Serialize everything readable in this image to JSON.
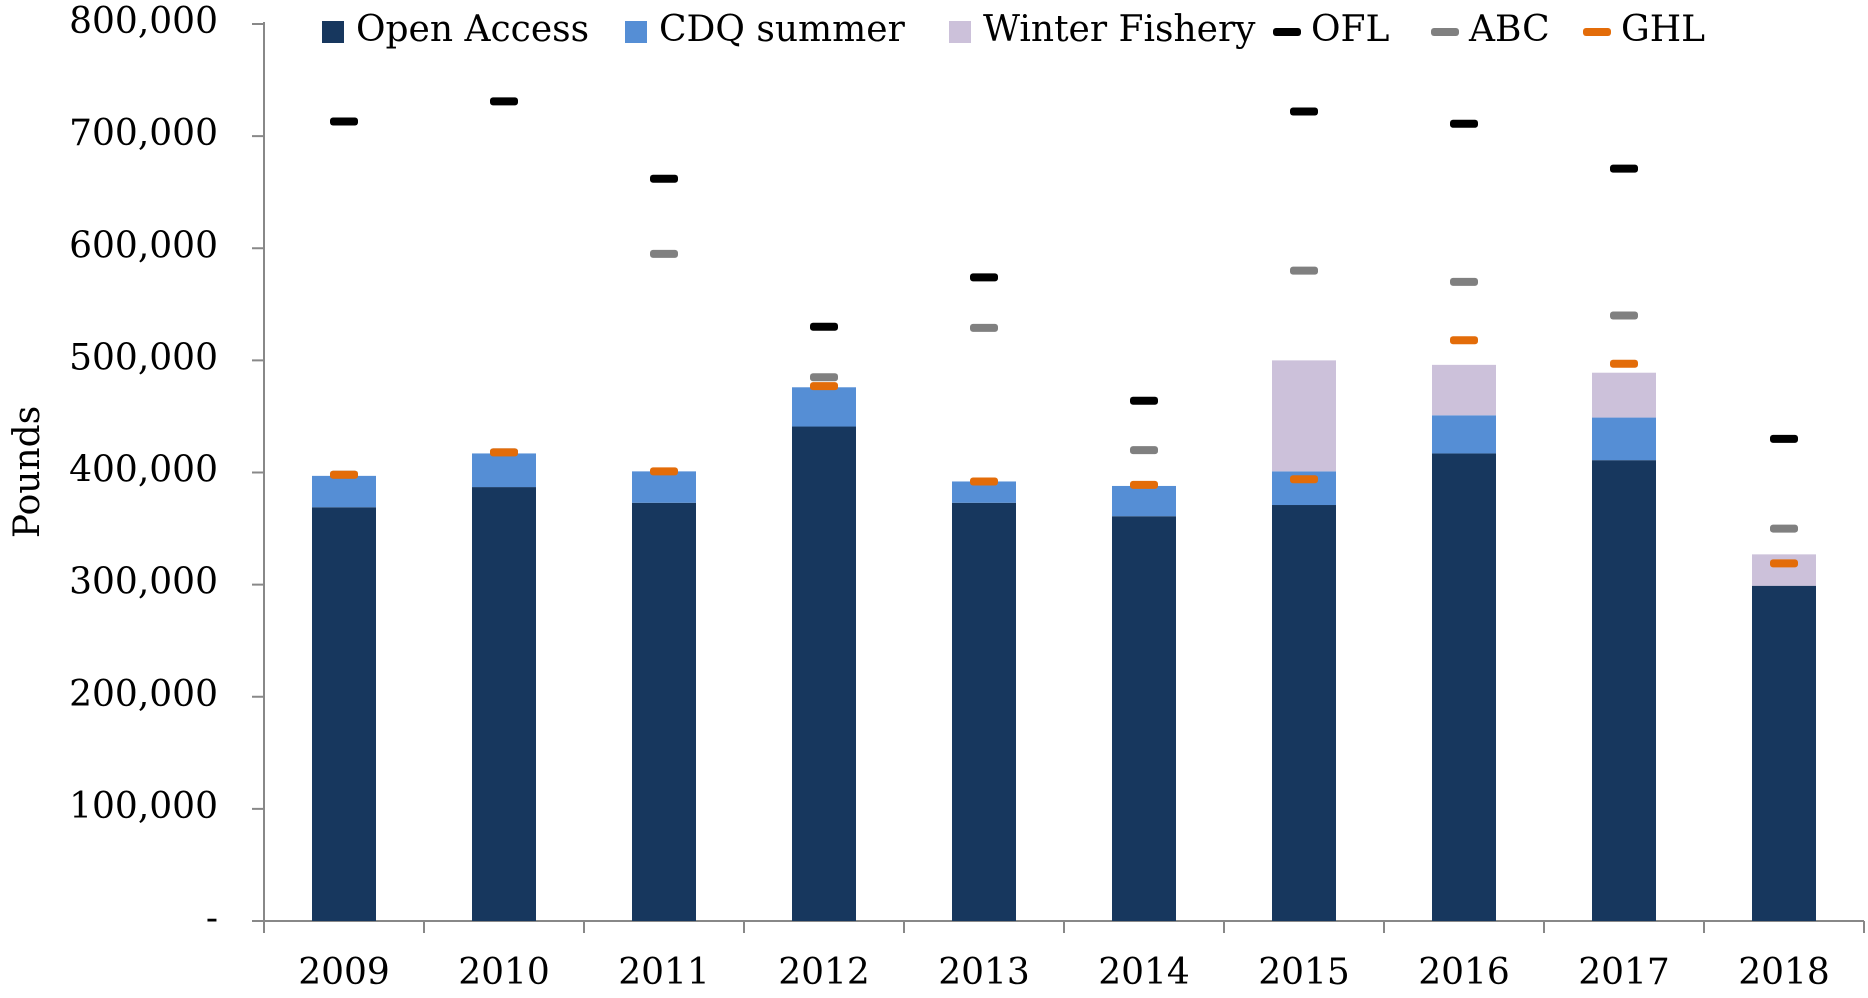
{
  "chart_data": {
    "type": "bar",
    "y_label": "Pounds",
    "categories": [
      "2009",
      "2010",
      "2011",
      "2012",
      "2013",
      "2014",
      "2015",
      "2016",
      "2017",
      "2018"
    ],
    "series": [
      {
        "name": "Open Access",
        "kind": "stack",
        "color": "#17375e",
        "values": [
          369000,
          387000,
          373000,
          441000,
          373000,
          361000,
          371000,
          417000,
          411000,
          299000
        ]
      },
      {
        "name": "CDQ summer",
        "kind": "stack",
        "color": "#558ed5",
        "values": [
          28000,
          30000,
          28000,
          35000,
          19000,
          27000,
          30000,
          34000,
          38000,
          0
        ]
      },
      {
        "name": "Winter Fishery",
        "kind": "stack",
        "color": "#ccc1da",
        "values": [
          0,
          0,
          0,
          0,
          0,
          0,
          99000,
          45000,
          40000,
          28000
        ]
      },
      {
        "name": "OFL",
        "kind": "marker",
        "color": "#000000",
        "values": [
          713000,
          731000,
          662000,
          530000,
          574000,
          464000,
          722000,
          711000,
          671000,
          430000
        ]
      },
      {
        "name": "ABC",
        "kind": "marker",
        "color": "#808080",
        "values": [
          398000,
          418000,
          595000,
          485000,
          529000,
          420000,
          580000,
          570000,
          540000,
          350000
        ]
      },
      {
        "name": "GHL",
        "kind": "marker",
        "color": "#e36c09",
        "values": [
          398000,
          418000,
          401000,
          477000,
          392000,
          389000,
          394000,
          518000,
          497000,
          319000
        ]
      }
    ],
    "ylim": [
      0,
      800000
    ],
    "yticks": [
      {
        "value": 0,
        "label": "-"
      },
      {
        "value": 100000,
        "label": "100,000"
      },
      {
        "value": 200000,
        "label": "200,000"
      },
      {
        "value": 300000,
        "label": "300,000"
      },
      {
        "value": 400000,
        "label": "400,000"
      },
      {
        "value": 500000,
        "label": "500,000"
      },
      {
        "value": 600000,
        "label": "600,000"
      },
      {
        "value": 700000,
        "label": "700,000"
      },
      {
        "value": 800000,
        "label": "800,000"
      }
    ],
    "legend": "top",
    "grid": false
  }
}
